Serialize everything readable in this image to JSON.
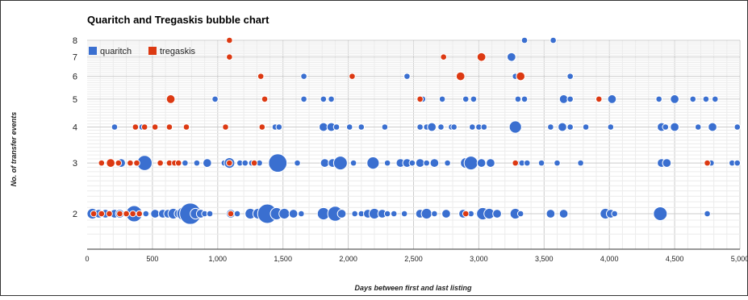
{
  "chart_data": {
    "type": "scatter",
    "title": "Quaritch and Tregaskis bubble chart",
    "xlabel": "Days between first and last listing",
    "ylabel": "No. of transfer events",
    "xlim": [
      0,
      5000
    ],
    "ylim": [
      1.6,
      8
    ],
    "y_scale": "log",
    "grid": true,
    "legend_position": "top-left",
    "x_ticks": [
      0,
      500,
      1000,
      1500,
      2000,
      2500,
      3000,
      3500,
      4000,
      4500,
      5000
    ],
    "x_tick_labels": [
      "0",
      "500",
      "1,000",
      "1,500",
      "2,000",
      "2,500",
      "3,000",
      "3,500",
      "4,000",
      "4,500",
      "5,000"
    ],
    "y_ticks": [
      2,
      3,
      4,
      5,
      6,
      7,
      8
    ],
    "y_tick_labels": [
      "2",
      "3",
      "4",
      "5",
      "6",
      "7",
      "8"
    ],
    "series": [
      {
        "name": "quaritch",
        "color": "#3a6fd0",
        "points": [
          [
            3350,
            8,
            1
          ],
          [
            3570,
            8,
            1
          ],
          [
            3250,
            7,
            2
          ],
          [
            1660,
            6,
            1
          ],
          [
            2450,
            6,
            1
          ],
          [
            3280,
            6,
            1
          ],
          [
            3330,
            6,
            1
          ],
          [
            3700,
            6,
            1
          ],
          [
            980,
            5,
            1
          ],
          [
            1660,
            5,
            1
          ],
          [
            1810,
            5,
            1
          ],
          [
            1870,
            5,
            1
          ],
          [
            2570,
            5,
            1
          ],
          [
            2720,
            5,
            1
          ],
          [
            2900,
            5,
            1
          ],
          [
            2960,
            5,
            1
          ],
          [
            3300,
            5,
            1
          ],
          [
            3350,
            5,
            1
          ],
          [
            3650,
            5,
            2
          ],
          [
            3700,
            5,
            1
          ],
          [
            4020,
            5,
            2
          ],
          [
            4380,
            5,
            1
          ],
          [
            4500,
            5,
            2
          ],
          [
            4640,
            5,
            1
          ],
          [
            4740,
            5,
            1
          ],
          [
            4810,
            5,
            1
          ],
          [
            210,
            4,
            1
          ],
          [
            420,
            4,
            1
          ],
          [
            1440,
            4,
            1
          ],
          [
            1470,
            4,
            1
          ],
          [
            1810,
            4,
            2
          ],
          [
            1870,
            4,
            2
          ],
          [
            1910,
            4,
            1
          ],
          [
            2010,
            4,
            1
          ],
          [
            2100,
            4,
            1
          ],
          [
            2280,
            4,
            1
          ],
          [
            2550,
            4,
            1
          ],
          [
            2600,
            4,
            1
          ],
          [
            2640,
            4,
            2
          ],
          [
            2710,
            4,
            1
          ],
          [
            2790,
            4,
            1
          ],
          [
            2810,
            4,
            1
          ],
          [
            2950,
            4,
            1
          ],
          [
            3000,
            4,
            1
          ],
          [
            3040,
            4,
            1
          ],
          [
            3280,
            4,
            4
          ],
          [
            3550,
            4,
            1
          ],
          [
            3640,
            4,
            2
          ],
          [
            3700,
            4,
            1
          ],
          [
            3820,
            4,
            1
          ],
          [
            4010,
            4,
            1
          ],
          [
            4400,
            4,
            2
          ],
          [
            4430,
            4,
            1
          ],
          [
            4500,
            4,
            2
          ],
          [
            4680,
            4,
            1
          ],
          [
            4790,
            4,
            2
          ],
          [
            4980,
            4,
            1
          ],
          [
            170,
            3,
            1
          ],
          [
            260,
            3,
            2
          ],
          [
            440,
            3,
            6
          ],
          [
            650,
            3,
            1
          ],
          [
            750,
            3,
            1
          ],
          [
            840,
            3,
            1
          ],
          [
            920,
            3,
            2
          ],
          [
            1050,
            3,
            1
          ],
          [
            1090,
            3,
            3
          ],
          [
            1170,
            3,
            1
          ],
          [
            1210,
            3,
            1
          ],
          [
            1260,
            3,
            1
          ],
          [
            1320,
            3,
            1
          ],
          [
            1460,
            3,
            9
          ],
          [
            1610,
            3,
            1
          ],
          [
            1820,
            3,
            2
          ],
          [
            1880,
            3,
            2
          ],
          [
            1940,
            3,
            5
          ],
          [
            2040,
            3,
            1
          ],
          [
            2190,
            3,
            4
          ],
          [
            2300,
            3,
            1
          ],
          [
            2400,
            3,
            2
          ],
          [
            2450,
            3,
            2
          ],
          [
            2490,
            3,
            1
          ],
          [
            2550,
            3,
            2
          ],
          [
            2600,
            3,
            1
          ],
          [
            2660,
            3,
            2
          ],
          [
            2760,
            3,
            1
          ],
          [
            2900,
            3,
            3
          ],
          [
            2940,
            3,
            5
          ],
          [
            3020,
            3,
            2
          ],
          [
            3090,
            3,
            2
          ],
          [
            3290,
            3,
            1
          ],
          [
            3330,
            3,
            1
          ],
          [
            3370,
            3,
            1
          ],
          [
            3480,
            3,
            1
          ],
          [
            3600,
            3,
            1
          ],
          [
            3780,
            3,
            1
          ],
          [
            4400,
            3,
            2
          ],
          [
            4440,
            3,
            2
          ],
          [
            4780,
            3,
            1
          ],
          [
            4940,
            3,
            1
          ],
          [
            4980,
            3,
            1
          ],
          [
            40,
            2,
            3
          ],
          [
            90,
            2,
            2
          ],
          [
            140,
            2,
            2
          ],
          [
            180,
            2,
            1
          ],
          [
            210,
            2,
            2
          ],
          [
            250,
            2,
            2
          ],
          [
            300,
            2,
            1
          ],
          [
            360,
            2,
            7
          ],
          [
            400,
            2,
            1
          ],
          [
            450,
            2,
            1
          ],
          [
            520,
            2,
            2
          ],
          [
            580,
            2,
            2
          ],
          [
            620,
            2,
            2
          ],
          [
            660,
            2,
            3
          ],
          [
            700,
            2,
            2
          ],
          [
            740,
            2,
            5
          ],
          [
            790,
            2,
            12
          ],
          [
            830,
            2,
            3
          ],
          [
            870,
            2,
            2
          ],
          [
            900,
            2,
            1
          ],
          [
            940,
            2,
            1
          ],
          [
            1100,
            2,
            2
          ],
          [
            1150,
            2,
            1
          ],
          [
            1250,
            2,
            3
          ],
          [
            1310,
            2,
            3
          ],
          [
            1380,
            2,
            10
          ],
          [
            1450,
            2,
            4
          ],
          [
            1510,
            2,
            3
          ],
          [
            1580,
            2,
            2
          ],
          [
            1640,
            2,
            1
          ],
          [
            1810,
            2,
            4
          ],
          [
            1900,
            2,
            6
          ],
          [
            1950,
            2,
            2
          ],
          [
            2050,
            2,
            1
          ],
          [
            2100,
            2,
            1
          ],
          [
            2150,
            2,
            2
          ],
          [
            2200,
            2,
            3
          ],
          [
            2260,
            2,
            2
          ],
          [
            2300,
            2,
            1
          ],
          [
            2350,
            2,
            1
          ],
          [
            2430,
            2,
            1
          ],
          [
            2550,
            2,
            2
          ],
          [
            2600,
            2,
            3
          ],
          [
            2660,
            2,
            1
          ],
          [
            2750,
            2,
            2
          ],
          [
            2880,
            2,
            2
          ],
          [
            2940,
            2,
            1
          ],
          [
            3030,
            2,
            4
          ],
          [
            3080,
            2,
            3
          ],
          [
            3140,
            2,
            2
          ],
          [
            3280,
            2,
            3
          ],
          [
            3320,
            2,
            1
          ],
          [
            3550,
            2,
            2
          ],
          [
            3650,
            2,
            2
          ],
          [
            3970,
            2,
            3
          ],
          [
            4010,
            2,
            2
          ],
          [
            4040,
            2,
            1
          ],
          [
            4390,
            2,
            5
          ],
          [
            4750,
            2,
            1
          ]
        ]
      },
      {
        "name": "tregaskis",
        "color": "#dc3912",
        "points": [
          [
            1090,
            8,
            1
          ],
          [
            1090,
            7,
            1
          ],
          [
            2730,
            7,
            1
          ],
          [
            3020,
            7,
            2
          ],
          [
            1330,
            6,
            1
          ],
          [
            2030,
            6,
            1
          ],
          [
            2860,
            6,
            2
          ],
          [
            3320,
            6,
            2
          ],
          [
            640,
            5,
            2
          ],
          [
            1360,
            5,
            1
          ],
          [
            2550,
            5,
            1
          ],
          [
            3920,
            5,
            1
          ],
          [
            370,
            4,
            1
          ],
          [
            440,
            4,
            1
          ],
          [
            520,
            4,
            1
          ],
          [
            630,
            4,
            1
          ],
          [
            760,
            4,
            1
          ],
          [
            1060,
            4,
            1
          ],
          [
            1340,
            4,
            1
          ],
          [
            110,
            3,
            1
          ],
          [
            180,
            3,
            2
          ],
          [
            240,
            3,
            1
          ],
          [
            330,
            3,
            1
          ],
          [
            380,
            3,
            1
          ],
          [
            560,
            3,
            1
          ],
          [
            630,
            3,
            1
          ],
          [
            670,
            3,
            1
          ],
          [
            700,
            3,
            1
          ],
          [
            1090,
            3,
            1
          ],
          [
            1280,
            3,
            1
          ],
          [
            3280,
            3,
            1
          ],
          [
            4750,
            3,
            1
          ],
          [
            50,
            2,
            1
          ],
          [
            110,
            2,
            1
          ],
          [
            170,
            2,
            1
          ],
          [
            250,
            2,
            1
          ],
          [
            300,
            2,
            1
          ],
          [
            350,
            2,
            1
          ],
          [
            400,
            2,
            1
          ],
          [
            1100,
            2,
            1
          ],
          [
            2900,
            2,
            1
          ]
        ]
      }
    ]
  }
}
